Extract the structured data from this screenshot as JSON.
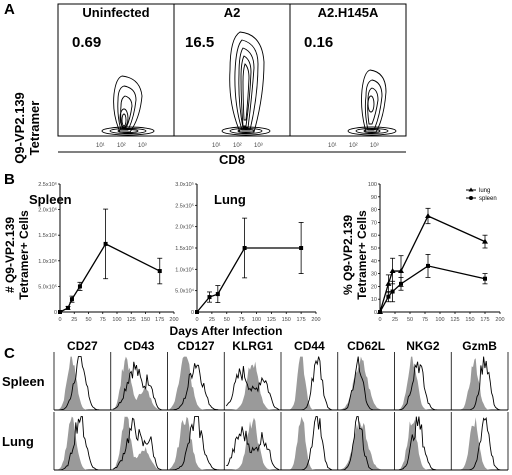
{
  "panel_labels": {
    "a": "A",
    "b": "B",
    "c": "C"
  },
  "panel_a": {
    "y_label_line1": "Q9-VP2.139",
    "y_label_line2": "Tetramer",
    "x_label": "CD8",
    "ticks": [
      "10¹",
      "10²",
      "10³"
    ],
    "plots": [
      {
        "title": "Uninfected",
        "percent": "0.69"
      },
      {
        "title": "A2",
        "percent": "16.5"
      },
      {
        "title": "A2.H145A",
        "percent": "0.16"
      }
    ]
  },
  "panel_b": {
    "left_y_label_line1": "# Q9-VP2.139",
    "left_y_label_line2": "Tetramer+ Cells",
    "right_y_label_line1": "% Q9-VP2.139",
    "right_y_label_line2": "Tetramer+ Cells",
    "x_label": "Days After Infection",
    "x_ticks": [
      "0",
      "25",
      "50",
      "75",
      "100",
      "125",
      "150",
      "175",
      "200"
    ]
  },
  "chart_data": [
    {
      "type": "line",
      "title": "Spleen",
      "xlabel": "Days After Infection",
      "ylabel": "# Q9-VP2.139 Tetramer+ Cells",
      "xlim": [
        0,
        200
      ],
      "ylim": [
        0,
        2500000
      ],
      "y_ticks": [
        "0",
        "5.0x10⁵",
        "1.0x10⁶",
        "1.5x10⁶",
        "2.0x10⁶",
        "2.5x10⁶"
      ],
      "series": [
        {
          "x": [
            0,
            14,
            21,
            35,
            80,
            175
          ],
          "y": [
            0,
            80000,
            250000,
            500000,
            1330000,
            800000
          ],
          "err": [
            0,
            30000,
            60000,
            80000,
            680000,
            250000
          ]
        }
      ]
    },
    {
      "type": "line",
      "title": "Lung",
      "xlabel": "Days After Infection",
      "ylabel": "",
      "xlim": [
        0,
        200
      ],
      "ylim": [
        0,
        300000
      ],
      "y_ticks": [
        "0",
        "5.0x10⁴",
        "1.0x10⁵",
        "1.5x10⁵",
        "2.0x10⁵",
        "2.5x10⁵",
        "3.0x10⁵"
      ],
      "series": [
        {
          "x": [
            0,
            21,
            35,
            80,
            175
          ],
          "y": [
            0,
            35000,
            42000,
            150000,
            150000
          ],
          "err": [
            0,
            12000,
            20000,
            70000,
            60000
          ]
        }
      ]
    },
    {
      "type": "line",
      "title": "",
      "xlabel": "Days After Infection",
      "ylabel": "% Q9-VP2.139 Tetramer+ Cells",
      "xlim": [
        0,
        200
      ],
      "ylim": [
        0,
        100
      ],
      "y_ticks": [
        "0",
        "10",
        "20",
        "30",
        "40",
        "50",
        "60",
        "70",
        "80",
        "90",
        "100"
      ],
      "legend_position": "top-right",
      "series": [
        {
          "name": "lung",
          "marker": "triangle",
          "x": [
            0,
            14,
            21,
            35,
            80,
            175
          ],
          "y": [
            0,
            22,
            32,
            32,
            75,
            55
          ],
          "err": [
            0,
            7,
            10,
            12,
            6,
            5
          ]
        },
        {
          "name": "spleen",
          "marker": "circle",
          "x": [
            0,
            14,
            21,
            35,
            80,
            175
          ],
          "y": [
            0,
            12,
            16,
            22,
            36,
            26
          ],
          "err": [
            0,
            4,
            8,
            5,
            9,
            4
          ]
        }
      ]
    }
  ],
  "panel_c": {
    "markers": [
      "CD27",
      "CD43",
      "CD127",
      "KLRG1",
      "CD44",
      "CD62L",
      "NKG2",
      "GzmB"
    ],
    "rows": [
      "Spleen",
      "Lung"
    ]
  }
}
